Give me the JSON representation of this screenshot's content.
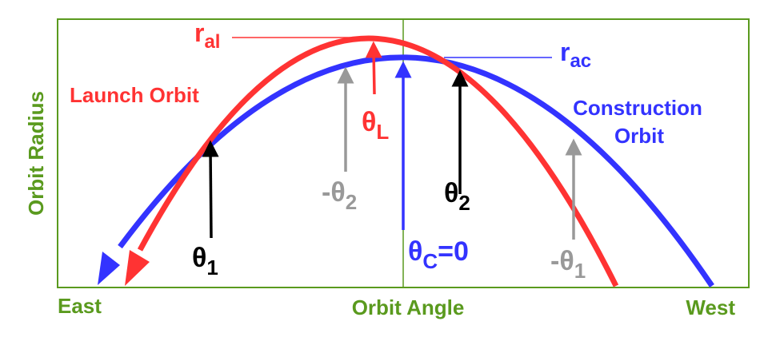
{
  "axes": {
    "y_label": "Orbit Radius",
    "x_label": "Orbit Angle",
    "x_left": "East",
    "x_right": "West"
  },
  "orbits": {
    "launch": {
      "label": "Launch Orbit",
      "color": "#ff3333",
      "radius_label": "r",
      "radius_sub": "al"
    },
    "construction": {
      "label_line1": "Construction",
      "label_line2": "Orbit",
      "color": "#3333ff",
      "radius_label": "r",
      "radius_sub": "ac"
    }
  },
  "angles": {
    "theta1": {
      "sym": "θ",
      "sub": "1",
      "color": "#000000"
    },
    "theta2": {
      "sym": "θ",
      "sub": "2",
      "color": "#000000"
    },
    "neg_theta2": {
      "sym": "-θ",
      "sub": "2",
      "color": "#999999"
    },
    "neg_theta1": {
      "sym": "-θ",
      "sub": "1",
      "color": "#999999"
    },
    "thetaL": {
      "sym": "θ",
      "sub": "L",
      "color": "#ff3333"
    },
    "thetaC": {
      "sym": "θ",
      "sub": "C",
      "suffix": "=0",
      "color": "#3333ff"
    }
  },
  "frame_color": "#5a9a1e"
}
